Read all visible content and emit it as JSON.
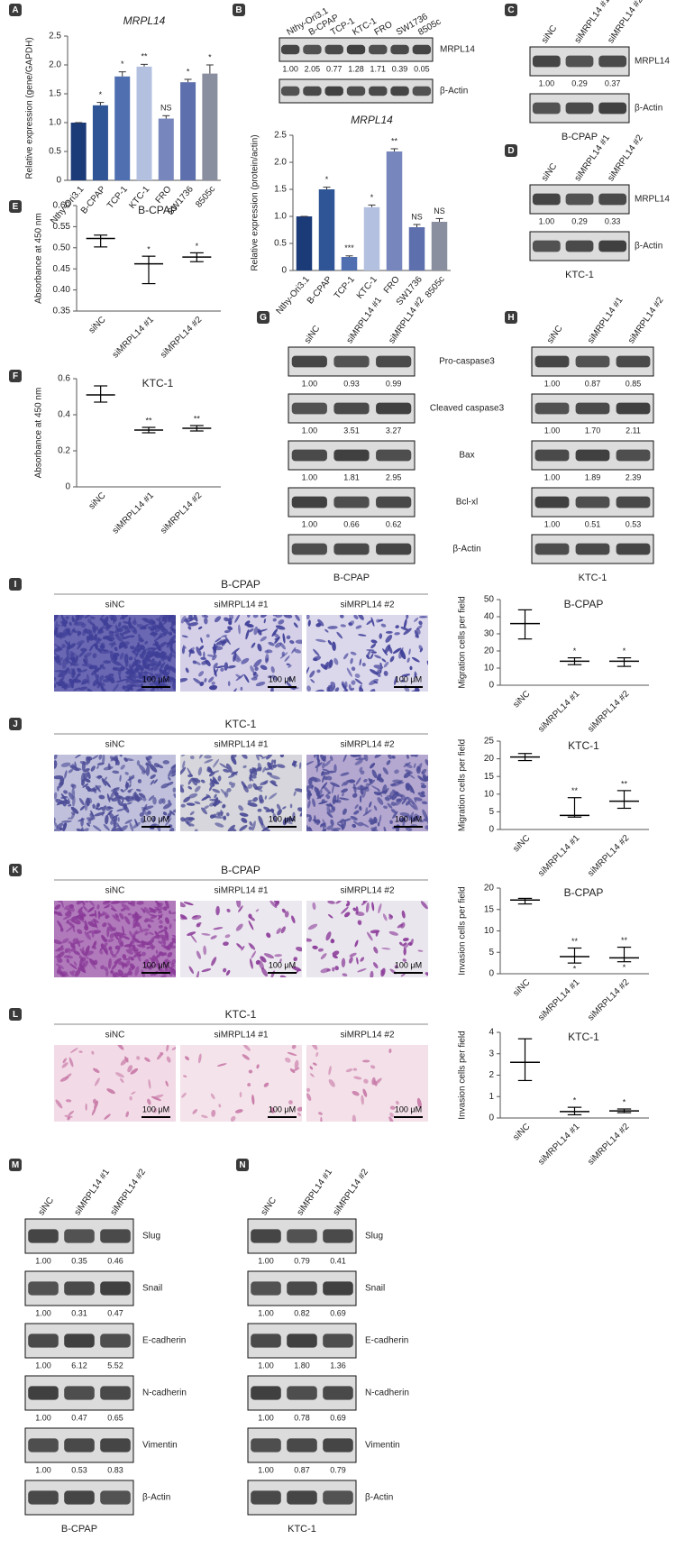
{
  "chart_data": [
    {
      "type": "bar",
      "label": "A",
      "title": "MRPL14",
      "y_label": "Relative expression (gene/GAPDH)",
      "categories": [
        "Nthy-Ori3.1",
        "B-CPAP",
        "TCP-1",
        "KTC-1",
        "FRO",
        "SW1736",
        "8505c"
      ],
      "values": [
        1.0,
        1.3,
        1.8,
        1.97,
        1.07,
        1.7,
        1.85
      ],
      "errors": [
        0,
        0.05,
        0.08,
        0.04,
        0.05,
        0.05,
        0.15
      ],
      "annotations": [
        null,
        "*",
        "*",
        "**",
        "NS",
        "*",
        "*"
      ],
      "colors": [
        "#1b3a78",
        "#2f5596",
        "#4f6fb0",
        "#b3c0e0",
        "#7786bc",
        "#5e6fae",
        "#8a8f9f"
      ],
      "ylim": [
        0,
        2.5
      ],
      "yticks": [
        0,
        0.5,
        {
          "value": 1,
          "label": "1.0"
        },
        1.5,
        {
          "value": 2,
          "label": "2.0"
        },
        2.5
      ]
    },
    {
      "type": "bar",
      "title": "MRPL14",
      "y_label": "Relative expression (protein/actin)",
      "categories": [
        "Nthy-Ori3.1",
        "B-CPAP",
        "TCP-1",
        "KTC-1",
        "FRO",
        "SW1736",
        "8505c"
      ],
      "values": [
        1.0,
        1.5,
        0.25,
        1.17,
        2.2,
        0.8,
        0.9
      ],
      "errors": [
        0,
        0.04,
        0.02,
        0.04,
        0.05,
        0.05,
        0.06
      ],
      "annotations": [
        null,
        "*",
        "***",
        "*",
        "**",
        "NS",
        "NS"
      ],
      "colors": [
        "#1b3a78",
        "#2f5596",
        "#4f6fb0",
        "#b3c0e0",
        "#7786bc",
        "#5e6fae",
        "#8a8f9f"
      ],
      "ylim": [
        0,
        2.5
      ],
      "yticks": [
        0,
        0.5,
        {
          "value": 1,
          "label": "1.0"
        },
        1.5,
        {
          "value": 2,
          "label": "2.0"
        },
        2.5
      ]
    },
    {
      "type": "errorbar",
      "label": "E",
      "title": "B-CPAP",
      "y_label": "Absorbance at 450 nm",
      "categories": [
        "siNC",
        "siMRPL14 #1",
        "siMRPL14 #2"
      ],
      "values": [
        0.522,
        0.462,
        0.478
      ],
      "low": [
        0.502,
        0.415,
        0.467
      ],
      "high": [
        0.53,
        0.48,
        0.488
      ],
      "annotations": [
        null,
        "*",
        "*"
      ],
      "color": "#000000",
      "ylim": [
        0.35,
        0.6
      ],
      "yticks": [
        0.35,
        {
          "value": 0.4,
          "label": "0.40"
        },
        0.45,
        {
          "value": 0.5,
          "label": "0.50"
        },
        0.55,
        {
          "value": 0.6,
          "label": "0.60"
        }
      ]
    },
    {
      "type": "errorbar",
      "label": "F",
      "title": "KTC-1",
      "y_label": "Absorbance at 450 nm",
      "categories": [
        "siNC",
        "siMRPL14 #1",
        "siMRPL14 #2"
      ],
      "values": [
        0.51,
        0.315,
        0.325
      ],
      "low": [
        0.47,
        0.3,
        0.31
      ],
      "high": [
        0.56,
        0.33,
        0.34
      ],
      "annotations": [
        null,
        "**",
        "**"
      ],
      "color": "#000000",
      "ylim": [
        0,
        0.6
      ],
      "yticks": [
        0,
        0.2,
        0.4,
        0.6
      ]
    },
    {
      "type": "errorbar",
      "title": "B-CPAP",
      "y_label": "Migration cells per field",
      "categories": [
        "siNC",
        "siMRPL14 #1",
        "siMRPL14 #2"
      ],
      "values": [
        36,
        14,
        14
      ],
      "low": [
        27,
        12,
        11
      ],
      "high": [
        44,
        16,
        16
      ],
      "annotations": [
        null,
        "*",
        "*"
      ],
      "color": "#000000",
      "ylim": [
        0,
        50
      ],
      "yticks": [
        0,
        10,
        20,
        30,
        40,
        50
      ]
    },
    {
      "type": "errorbar",
      "title": "KTC-1",
      "y_label": "Migration cells per field",
      "categories": [
        "siNC",
        "siMRPL14 #1",
        "siMRPL14 #2"
      ],
      "values": [
        20.5,
        4,
        8
      ],
      "low": [
        19.5,
        3.5,
        6
      ],
      "high": [
        21.5,
        9,
        11
      ],
      "annotations": [
        null,
        "**",
        "**"
      ],
      "color": "#000000",
      "ylim": [
        0,
        25
      ],
      "yticks": [
        0,
        5,
        10,
        15,
        20,
        25
      ]
    },
    {
      "type": "errorbar",
      "title": "B-CPAP",
      "y_label": "Invasion cells per field",
      "categories": [
        "siNC",
        "siMRPL14 #1",
        "siMRPL14 #2"
      ],
      "values": [
        17.2,
        4,
        3.7
      ],
      "low": [
        16.3,
        2.5,
        2.8
      ],
      "high": [
        17.6,
        6,
        6.2
      ],
      "annotations": [
        null,
        "**",
        "**"
      ],
      "annotations_low": [
        null,
        "*",
        "*"
      ],
      "color": "#000000",
      "ylim": [
        0,
        20
      ],
      "yticks": [
        0,
        5,
        10,
        15,
        20
      ]
    },
    {
      "type": "errorbar",
      "title": "KTC-1",
      "y_label": "Invasion cells per field",
      "categories": [
        "siNC",
        "siMRPL14 #1",
        "siMRPL14 #2"
      ],
      "values": [
        2.6,
        0.3,
        0.33
      ],
      "low": [
        1.75,
        0.15,
        0.25
      ],
      "high": [
        3.7,
        0.5,
        0.42
      ],
      "annotations": [
        null,
        "*",
        "*"
      ],
      "color": "#000000",
      "ylim": [
        0,
        4
      ],
      "yticks": [
        0,
        1,
        2,
        3,
        4
      ]
    }
  ],
  "blots": [
    {
      "label": "B",
      "lanes": [
        "Nthy-Ori3.1",
        "B-CPAP",
        "TCP-1",
        "KTC-1",
        "FRO",
        "SW1736",
        "8505c"
      ],
      "rows": [
        {
          "name": "MRPL14",
          "values": [
            "1.00",
            "2.05",
            "0.77",
            "1.28",
            "1.71",
            "0.39",
            "0.05"
          ]
        },
        {
          "name": "β-Actin"
        }
      ]
    },
    {
      "label": "C",
      "lanes": [
        "siNC",
        "siMRPL14 #1",
        "siMRPL14 #2"
      ],
      "rows": [
        {
          "name": "MRPL14",
          "values": [
            "1.00",
            "0.29",
            "0.37"
          ]
        },
        {
          "name": "β-Actin"
        }
      ],
      "caption": "B-CPAP"
    },
    {
      "label": "D",
      "lanes": [
        "siNC",
        "siMRPL14 #1",
        "siMRPL14 #2"
      ],
      "rows": [
        {
          "name": "MRPL14",
          "values": [
            "1.00",
            "0.29",
            "0.33"
          ]
        },
        {
          "name": "β-Actin"
        }
      ],
      "caption": "KTC-1"
    },
    {
      "label": "G",
      "lanes": [
        "siNC",
        "siMRPL14 #1",
        "siMRPL14 #2"
      ],
      "rows": [
        {
          "name": "Pro-caspase3",
          "values": [
            "1.00",
            "0.93",
            "0.99"
          ]
        },
        {
          "name": "Cleaved caspase3",
          "values": [
            "1.00",
            "3.51",
            "3.27"
          ]
        },
        {
          "name": "Bax",
          "values": [
            "1.00",
            "1.81",
            "2.95"
          ]
        },
        {
          "name": "Bcl-xl",
          "values": [
            "1.00",
            "0.66",
            "0.62"
          ]
        },
        {
          "name": "β-Actin"
        }
      ],
      "caption": "B-CPAP"
    },
    {
      "label": "H",
      "lanes": [
        "siNC",
        "siMRPL14 #1",
        "siMRPL14 #2"
      ],
      "rows": [
        {
          "values": [
            "1.00",
            "0.87",
            "0.85"
          ]
        },
        {
          "values": [
            "1.00",
            "1.70",
            "2.11"
          ]
        },
        {
          "values": [
            "1.00",
            "1.89",
            "2.39"
          ]
        },
        {
          "values": [
            "1.00",
            "0.51",
            "0.53"
          ]
        },
        {}
      ],
      "caption": "KTC-1"
    },
    {
      "label": "M",
      "lanes": [
        "siNC",
        "siMRPL14 #1",
        "siMRPL14 #2"
      ],
      "rows": [
        {
          "name": "Slug",
          "values": [
            "1.00",
            "0.35",
            "0.46"
          ]
        },
        {
          "name": "Snail",
          "values": [
            "1.00",
            "0.31",
            "0.47"
          ]
        },
        {
          "name": "E-cadherin",
          "values": [
            "1.00",
            "6.12",
            "5.52"
          ]
        },
        {
          "name": "N-cadherin",
          "values": [
            "1.00",
            "0.47",
            "0.65"
          ]
        },
        {
          "name": "Vimentin",
          "values": [
            "1.00",
            "0.53",
            "0.83"
          ]
        },
        {
          "name": "β-Actin"
        }
      ],
      "caption": "B-CPAP"
    },
    {
      "label": "N",
      "lanes": [
        "siNC",
        "siMRPL14 #1",
        "siMRPL14 #2"
      ],
      "rows": [
        {
          "name": "Slug",
          "values": [
            "1.00",
            "0.79",
            "0.41"
          ]
        },
        {
          "name": "Snail",
          "values": [
            "1.00",
            "0.82",
            "0.69"
          ]
        },
        {
          "name": "E-cadherin",
          "values": [
            "1.00",
            "1.80",
            "1.36"
          ]
        },
        {
          "name": "N-cadherin",
          "values": [
            "1.00",
            "0.78",
            "0.69"
          ]
        },
        {
          "name": "Vimentin",
          "values": [
            "1.00",
            "0.87",
            "0.79"
          ]
        },
        {
          "name": "β-Actin"
        }
      ],
      "caption": "KTC-1"
    }
  ],
  "micrographs": [
    {
      "label": "I",
      "title": "B-CPAP",
      "columns": [
        "siNC",
        "siMRPL14 #1",
        "siMRPL14 #2"
      ],
      "scale_bars": [
        "100 μM",
        "100 μM",
        "100 μM"
      ]
    },
    {
      "label": "J",
      "title": "KTC-1",
      "columns": [
        "siNC",
        "siMRPL14 #1",
        "siMRPL14 #2"
      ],
      "scale_bars": [
        "100 μM",
        "100 μM",
        "100 μM"
      ]
    },
    {
      "label": "K",
      "title": "B-CPAP",
      "columns": [
        "siNC",
        "siMRPL14 #1",
        "siMRPL14 #2"
      ],
      "scale_bars": [
        "100 μM",
        "100 μM",
        "100 μM"
      ]
    },
    {
      "label": "L",
      "title": "KTC-1",
      "columns": [
        "siNC",
        "siMRPL14 #1",
        "siMRPL14 #2"
      ],
      "scale_bars": [
        "100 μM",
        "100 μM",
        "100 μM"
      ]
    }
  ]
}
